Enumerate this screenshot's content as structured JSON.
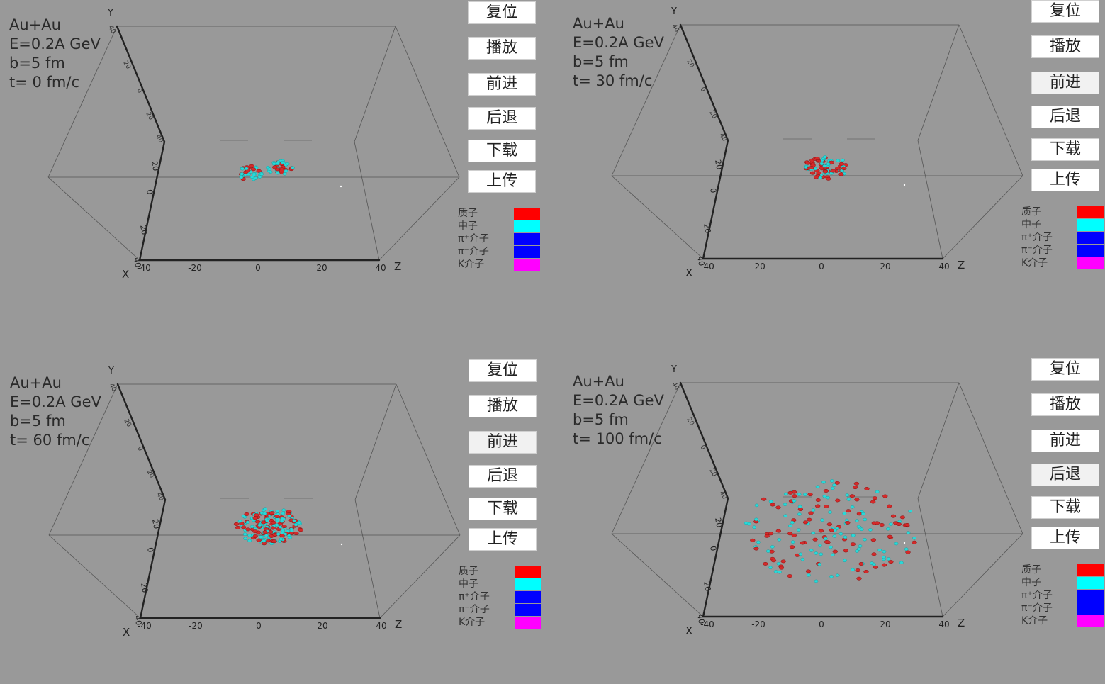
{
  "buttons": [
    {
      "key": "reset",
      "label": "复位"
    },
    {
      "key": "play",
      "label": "播放"
    },
    {
      "key": "forward",
      "label": "前进"
    },
    {
      "key": "back",
      "label": "后退"
    },
    {
      "key": "download",
      "label": "下载"
    },
    {
      "key": "upload",
      "label": "上传"
    }
  ],
  "legend": [
    {
      "label": "质子",
      "color": "#ff0000"
    },
    {
      "label": "中子",
      "color": "#00ffff"
    },
    {
      "label": "π⁺介子",
      "color": "#0000ff"
    },
    {
      "label": "π⁻介子",
      "color": "#0000ff"
    },
    {
      "label": "K介子",
      "color": "#ff00ff"
    }
  ],
  "axes": {
    "y_label": "Y",
    "x_label": "X",
    "z_label": "Z",
    "z_ticks": [
      "-40",
      "-20",
      "0",
      "20",
      "40"
    ],
    "y_ticks": [
      "40",
      "20",
      "0",
      "20",
      "40"
    ],
    "x_ticks": [
      "40",
      "20",
      "0",
      "20",
      "40"
    ]
  },
  "colors": {
    "proton": "#d42a2a",
    "neutron": "#2ad8d8",
    "background": "#999999"
  },
  "panels": [
    {
      "system": "Au+Au",
      "energy": "E=0.2A GeV",
      "impact": "b=5 fm",
      "time": "t= 0 fm/c",
      "pressed_button": null,
      "spread": 0.0
    },
    {
      "system": "Au+Au",
      "energy": "E=0.2A GeV",
      "impact": "b=5 fm",
      "time": "t= 30 fm/c",
      "pressed_button": "forward",
      "spread": 0.35
    },
    {
      "system": "Au+Au",
      "energy": "E=0.2A GeV",
      "impact": "b=5 fm",
      "time": "t= 60 fm/c",
      "pressed_button": "forward",
      "spread": 0.6
    },
    {
      "system": "Au+Au",
      "energy": "E=0.2A GeV",
      "impact": "b=5 fm",
      "time": "t= 100 fm/c",
      "pressed_button": "back",
      "spread": 1.0
    }
  ]
}
